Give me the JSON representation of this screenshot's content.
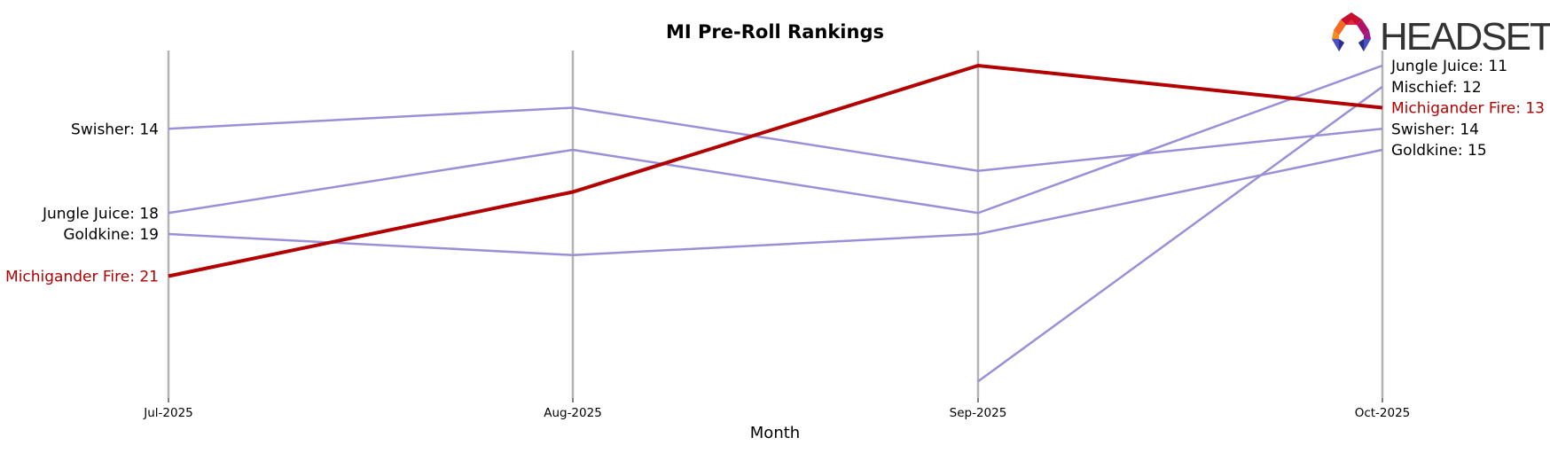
{
  "chart_data": {
    "type": "line",
    "title": "MI Pre-Roll Rankings",
    "xlabel": "Month",
    "ylabel": "",
    "categories": [
      "Jul-2025",
      "Aug-2025",
      "Sep-2025",
      "Oct-2025"
    ],
    "y_inverted": true,
    "ylim": [
      11,
      27
    ],
    "grid": false,
    "legend_position": "inline-end-labels",
    "highlight_series": "Michigander Fire",
    "series": [
      {
        "name": "Swisher",
        "values": [
          14,
          13,
          16,
          14
        ],
        "color": "#9b8fd8",
        "highlight": false,
        "start_label": "Swisher: 14",
        "end_label": "Swisher: 14"
      },
      {
        "name": "Jungle Juice",
        "values": [
          18,
          15,
          18,
          11
        ],
        "color": "#9b8fd8",
        "highlight": false,
        "start_label": "Jungle Juice: 18",
        "end_label": "Jungle Juice: 11"
      },
      {
        "name": "Goldkine",
        "values": [
          19,
          20,
          19,
          15
        ],
        "color": "#9b8fd8",
        "highlight": false,
        "start_label": "Goldkine: 19",
        "end_label": "Goldkine: 15"
      },
      {
        "name": "Michigander Fire",
        "values": [
          21,
          17,
          11,
          13
        ],
        "color": "#b30000",
        "highlight": true,
        "start_label": "Michigander Fire: 21",
        "end_label": "Michigander Fire: 13"
      },
      {
        "name": "Mischief",
        "values": [
          null,
          null,
          26,
          12
        ],
        "color": "#9b8fd8",
        "highlight": false,
        "start_label": null,
        "end_label": "Mischief: 12"
      }
    ]
  },
  "colors": {
    "highlight": "#b30000",
    "other_series": "#9b8fd8",
    "axis_line": "#b3b3b3",
    "text": "#000000"
  },
  "logo": {
    "text": "HEADSET",
    "icon": "headset-logo-icon"
  }
}
